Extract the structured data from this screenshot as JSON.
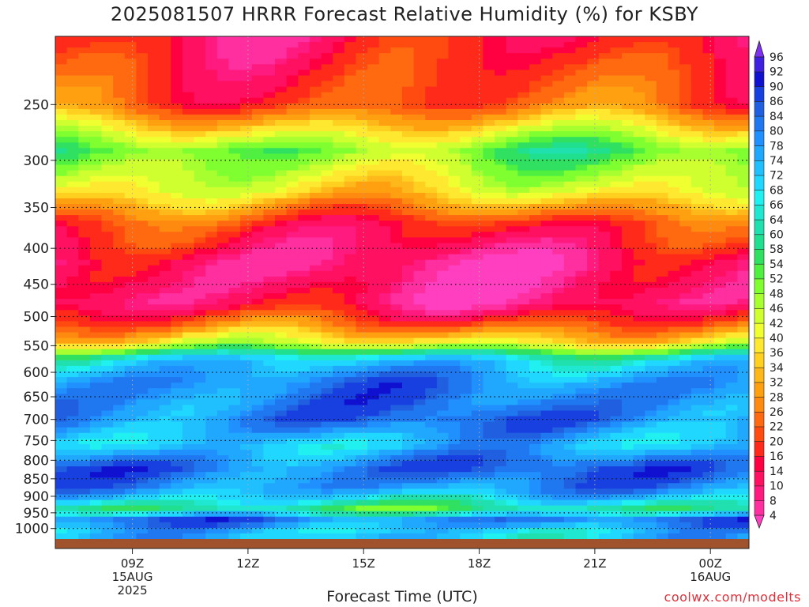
{
  "chart_data": {
    "type": "heatmap",
    "title": "2025081507 HRRR Forecast Relative Humidity (%) for KSBY",
    "xlabel": "Forecast Time (UTC)",
    "ylabel": "",
    "y_scale": "log-pressure",
    "y_inverted": true,
    "y_ticks": [
      250,
      300,
      350,
      400,
      450,
      500,
      550,
      600,
      650,
      700,
      750,
      800,
      850,
      900,
      950,
      1000
    ],
    "x_ticks": [
      {
        "hour": 9,
        "lines": [
          "09Z",
          "15AUG",
          "2025"
        ]
      },
      {
        "hour": 12,
        "lines": [
          "12Z"
        ]
      },
      {
        "hour": 15,
        "lines": [
          "15Z"
        ]
      },
      {
        "hour": 18,
        "lines": [
          "18Z"
        ]
      },
      {
        "hour": 21,
        "lines": [
          "21Z"
        ]
      },
      {
        "hour": 24,
        "lines": [
          "00Z",
          "16AUG"
        ]
      }
    ],
    "x_range_hours": [
      7,
      25
    ],
    "y_range_hpa": [
      200,
      1035
    ],
    "grid": true,
    "colorbar_levels": [
      4,
      8,
      10,
      14,
      16,
      20,
      22,
      26,
      28,
      32,
      34,
      36,
      40,
      42,
      46,
      48,
      52,
      54,
      58,
      60,
      64,
      66,
      68,
      72,
      74,
      78,
      80,
      84,
      86,
      90,
      92,
      96
    ],
    "colorbar_colors": [
      "#ff3fbf",
      "#ff2fa0",
      "#ff1a80",
      "#ff1060",
      "#ff0040",
      "#ff2a1a",
      "#ff4a10",
      "#ff6a10",
      "#ff8a10",
      "#ffa010",
      "#ffb81a",
      "#ffd020",
      "#ffe830",
      "#f0ff30",
      "#d0ff30",
      "#a8ff30",
      "#80ff30",
      "#50f040",
      "#30e060",
      "#20e090",
      "#20e0b0",
      "#20e8d0",
      "#20f0f0",
      "#20d8ff",
      "#20c0ff",
      "#20a8ff",
      "#2090ff",
      "#2078f0",
      "#2060e0",
      "#1840e0",
      "#1010d0",
      "#4020e0",
      "#8030f0"
    ],
    "ground_color": "#a0522d",
    "rh_profile": [
      {
        "p": 200,
        "rh": 14
      },
      {
        "p": 250,
        "rh": 22
      },
      {
        "p": 290,
        "rh": 52
      },
      {
        "p": 330,
        "rh": 40
      },
      {
        "p": 370,
        "rh": 18
      },
      {
        "p": 420,
        "rh": 8
      },
      {
        "p": 480,
        "rh": 10
      },
      {
        "p": 510,
        "rh": 22
      },
      {
        "p": 545,
        "rh": 40
      },
      {
        "p": 575,
        "rh": 70
      },
      {
        "p": 620,
        "rh": 80
      },
      {
        "p": 700,
        "rh": 82
      },
      {
        "p": 760,
        "rh": 72
      },
      {
        "p": 820,
        "rh": 84
      },
      {
        "p": 880,
        "rh": 78
      },
      {
        "p": 940,
        "rh": 58
      },
      {
        "p": 975,
        "rh": 84
      },
      {
        "p": 1000,
        "rh": 72
      }
    ]
  },
  "credit": "coolwx.com/modelts"
}
